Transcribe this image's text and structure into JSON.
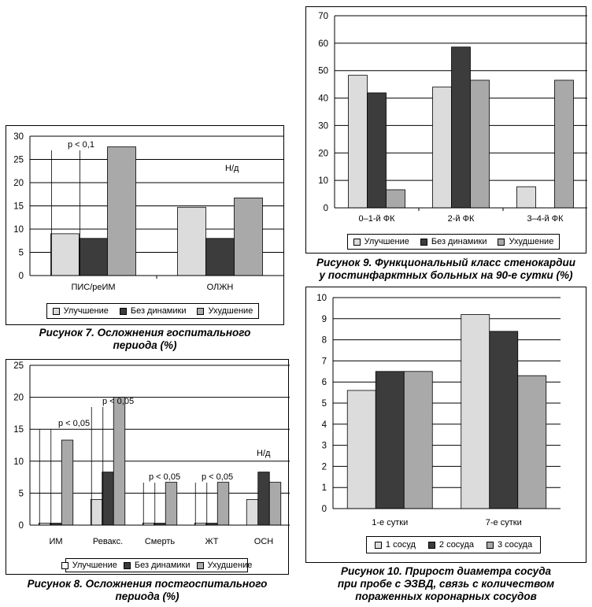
{
  "colors": {
    "light": "#dcdcdc",
    "dark": "#3c3c3c",
    "mid": "#a9a9a9"
  },
  "chart_data": [
    {
      "id": "fig7",
      "type": "bar",
      "categories": [
        "ПИС/реИМ",
        "ОЛЖН"
      ],
      "series": [
        {
          "name": "Улучшение",
          "values": [
            9,
            14.7
          ]
        },
        {
          "name": "Без динамики",
          "values": [
            8,
            8
          ]
        },
        {
          "name": "Ухудшение",
          "values": [
            27.7,
            16.7
          ]
        }
      ],
      "ylim": [
        0,
        30
      ],
      "yticks": [
        0,
        5,
        10,
        15,
        20,
        25,
        30
      ],
      "annotations": [
        "p < 0,1",
        "Н/д"
      ],
      "caption": [
        "Рисунок 7. Осложнения госпитального",
        "периода (%)"
      ]
    },
    {
      "id": "fig8",
      "type": "bar",
      "categories": [
        "ИМ",
        "Ревакс.",
        "Смерть",
        "ЖТ",
        "ОСН"
      ],
      "series": [
        {
          "name": "Улучшение",
          "values": [
            0.3,
            4,
            0.3,
            0.3,
            4
          ]
        },
        {
          "name": "Без динамики",
          "values": [
            0.3,
            8.3,
            0.3,
            0.3,
            8.3
          ]
        },
        {
          "name": "Ухудшение",
          "values": [
            13.3,
            20,
            6.7,
            6.7,
            6.7
          ]
        }
      ],
      "ylim": [
        0,
        25
      ],
      "yticks": [
        0,
        5,
        10,
        15,
        20,
        25
      ],
      "annotations": [
        "p < 0,05",
        "p < 0,05",
        "p < 0,05",
        "p < 0,05",
        "Н/д"
      ],
      "caption": [
        "Рисунок 8. Осложнения постгоспитального",
        "периода (%)"
      ]
    },
    {
      "id": "fig9",
      "type": "bar",
      "categories": [
        "0–1-й ФК",
        "2-й ФК",
        "3–4-й ФК"
      ],
      "series": [
        {
          "name": "Улучшение",
          "values": [
            48.3,
            44,
            7.7
          ]
        },
        {
          "name": "Без динамики",
          "values": [
            41.9,
            58.6,
            0
          ]
        },
        {
          "name": "Ухудшение",
          "values": [
            6.6,
            46.5,
            46.5
          ]
        }
      ],
      "ylim": [
        0,
        70
      ],
      "yticks": [
        0,
        10,
        20,
        30,
        40,
        50,
        60,
        70
      ],
      "caption": [
        "Рисунок 9. Функциональный класс стенокардии",
        "у постинфарктных больных на 90-е сутки (%)"
      ]
    },
    {
      "id": "fig10",
      "type": "bar",
      "categories": [
        "1-е сутки",
        "7-е сутки"
      ],
      "series": [
        {
          "name": "1 сосуд",
          "values": [
            5.6,
            9.2
          ]
        },
        {
          "name": "2 сосуда",
          "values": [
            6.5,
            8.4
          ]
        },
        {
          "name": "3 сосуда",
          "values": [
            6.5,
            6.3
          ]
        }
      ],
      "ylim": [
        0,
        10
      ],
      "yticks": [
        0,
        1,
        2,
        3,
        4,
        5,
        6,
        7,
        8,
        9,
        10
      ],
      "caption": [
        "Рисунок 10. Прирост диаметра сосуда",
        "при пробе с ЭЗВД, связь с количеством",
        "пораженных коронарных сосудов"
      ]
    }
  ]
}
